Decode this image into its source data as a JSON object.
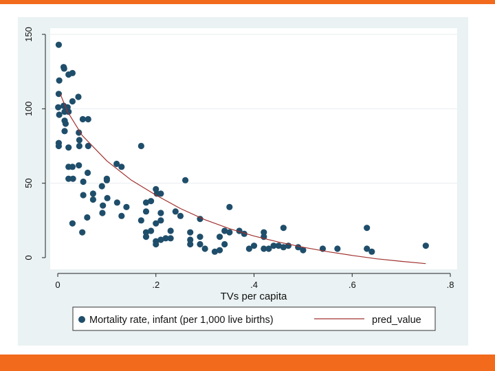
{
  "colors": {
    "accent_bar": "#f26a1b",
    "frame_bg": "#eaf2f3",
    "plot_bg": "#ffffff",
    "gridline": "#e6ecee",
    "marker": "#1f4e6b",
    "fit_line": "#a0302e"
  },
  "chart_data": {
    "type": "scatter",
    "xlabel": "TVs per capita",
    "ylabel": "",
    "xlim": [
      0,
      0.8
    ],
    "ylim": [
      0,
      150
    ],
    "xticks": [
      {
        "value": 0,
        "label": "0"
      },
      {
        "value": 0.2,
        "label": ".2"
      },
      {
        "value": 0.4,
        "label": ".4"
      },
      {
        "value": 0.6,
        "label": ".6"
      },
      {
        "value": 0.8,
        "label": ".8"
      }
    ],
    "yticks": [
      {
        "value": 0,
        "label": "0"
      },
      {
        "value": 50,
        "label": "50"
      },
      {
        "value": 100,
        "label": "100"
      },
      {
        "value": 150,
        "label": "150"
      }
    ],
    "grid": true,
    "legend": {
      "position": "bottom",
      "entries": [
        {
          "label": "Mortality rate, infant (per 1,000 live births)",
          "kind": "marker"
        },
        {
          "label": "pred_value",
          "kind": "line"
        }
      ]
    },
    "series": [
      {
        "name": "Mortality rate, infant (per 1,000 live births)",
        "kind": "scatter",
        "points": [
          [
            0.002,
            143
          ],
          [
            0.003,
            119
          ],
          [
            0.002,
            110
          ],
          [
            0.012,
            128
          ],
          [
            0.013,
            127
          ],
          [
            0.022,
            123
          ],
          [
            0.03,
            124
          ],
          [
            0.001,
            101
          ],
          [
            0.003,
            96
          ],
          [
            0.012,
            102
          ],
          [
            0.014,
            98
          ],
          [
            0.02,
            101
          ],
          [
            0.022,
            98
          ],
          [
            0.03,
            105
          ],
          [
            0.042,
            108
          ],
          [
            0.014,
            92
          ],
          [
            0.016,
            90
          ],
          [
            0.014,
            85
          ],
          [
            0.051,
            93
          ],
          [
            0.062,
            93
          ],
          [
            0.002,
            77
          ],
          [
            0.002,
            75
          ],
          [
            0.022,
            74
          ],
          [
            0.043,
            84
          ],
          [
            0.044,
            79
          ],
          [
            0.044,
            75
          ],
          [
            0.062,
            75
          ],
          [
            0.17,
            75
          ],
          [
            0.022,
            61
          ],
          [
            0.03,
            61
          ],
          [
            0.043,
            62
          ],
          [
            0.061,
            57
          ],
          [
            0.022,
            53
          ],
          [
            0.031,
            53
          ],
          [
            0.052,
            51
          ],
          [
            0.12,
            63
          ],
          [
            0.13,
            61
          ],
          [
            0.1,
            53
          ],
          [
            0.1,
            52
          ],
          [
            0.09,
            48
          ],
          [
            0.2,
            46
          ],
          [
            0.202,
            43
          ],
          [
            0.21,
            43
          ],
          [
            0.26,
            52
          ],
          [
            0.052,
            42
          ],
          [
            0.072,
            43
          ],
          [
            0.072,
            39
          ],
          [
            0.101,
            40
          ],
          [
            0.121,
            37
          ],
          [
            0.092,
            35
          ],
          [
            0.14,
            34
          ],
          [
            0.18,
            37
          ],
          [
            0.19,
            38
          ],
          [
            0.091,
            30
          ],
          [
            0.13,
            28
          ],
          [
            0.06,
            27
          ],
          [
            0.03,
            23
          ],
          [
            0.05,
            17
          ],
          [
            0.17,
            25
          ],
          [
            0.18,
            31
          ],
          [
            0.21,
            30
          ],
          [
            0.24,
            31
          ],
          [
            0.25,
            28
          ],
          [
            0.29,
            26
          ],
          [
            0.35,
            34
          ],
          [
            0.2,
            23
          ],
          [
            0.21,
            25
          ],
          [
            0.18,
            17
          ],
          [
            0.19,
            18
          ],
          [
            0.18,
            14
          ],
          [
            0.2,
            11
          ],
          [
            0.2,
            9
          ],
          [
            0.21,
            12
          ],
          [
            0.22,
            13
          ],
          [
            0.23,
            13
          ],
          [
            0.23,
            18
          ],
          [
            0.27,
            17
          ],
          [
            0.27,
            12
          ],
          [
            0.27,
            9
          ],
          [
            0.29,
            14
          ],
          [
            0.29,
            9
          ],
          [
            0.3,
            6
          ],
          [
            0.32,
            4
          ],
          [
            0.33,
            5
          ],
          [
            0.33,
            14
          ],
          [
            0.34,
            9
          ],
          [
            0.34,
            18
          ],
          [
            0.35,
            17
          ],
          [
            0.37,
            18
          ],
          [
            0.38,
            16
          ],
          [
            0.39,
            6
          ],
          [
            0.4,
            8
          ],
          [
            0.42,
            17
          ],
          [
            0.42,
            14
          ],
          [
            0.42,
            6
          ],
          [
            0.43,
            6
          ],
          [
            0.44,
            8
          ],
          [
            0.45,
            8
          ],
          [
            0.46,
            20
          ],
          [
            0.46,
            7
          ],
          [
            0.47,
            8
          ],
          [
            0.49,
            7
          ],
          [
            0.5,
            5
          ],
          [
            0.54,
            6
          ],
          [
            0.57,
            6
          ],
          [
            0.63,
            20
          ],
          [
            0.63,
            6
          ],
          [
            0.64,
            4
          ],
          [
            0.75,
            8
          ]
        ]
      },
      {
        "name": "pred_value",
        "kind": "line",
        "points": [
          [
            0.005,
            110
          ],
          [
            0.02,
            98
          ],
          [
            0.05,
            82
          ],
          [
            0.1,
            65
          ],
          [
            0.15,
            52
          ],
          [
            0.2,
            42
          ],
          [
            0.25,
            33
          ],
          [
            0.3,
            25.5
          ],
          [
            0.35,
            19.5
          ],
          [
            0.4,
            14.5
          ],
          [
            0.45,
            10.5
          ],
          [
            0.5,
            7
          ],
          [
            0.55,
            4
          ],
          [
            0.6,
            1.5
          ],
          [
            0.65,
            -0.8
          ],
          [
            0.7,
            -2.5
          ],
          [
            0.75,
            -4
          ]
        ]
      }
    ]
  }
}
